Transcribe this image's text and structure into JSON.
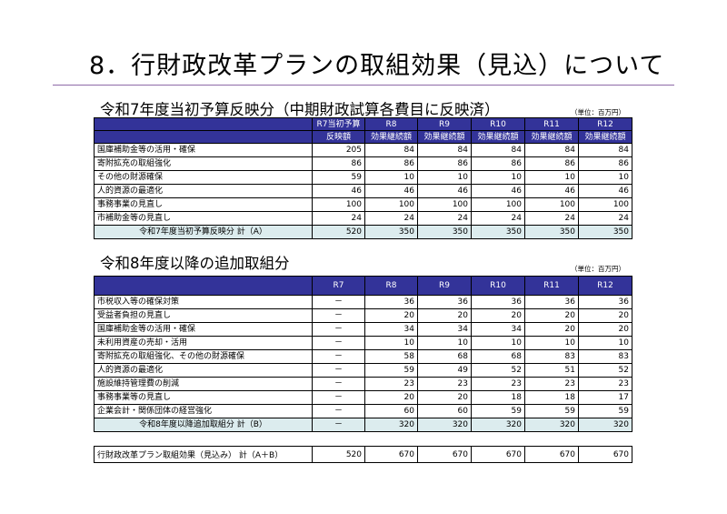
{
  "page_title": "8．行財政改革プランの取組効果（見込）について",
  "section1": {
    "heading": "令和7年度当初予算反映分（中期財政試算各費目に反映済）",
    "unit": "（単位：百万円）",
    "headers": [
      [
        "",
        "R7当初予算",
        "R8",
        "R9",
        "R10",
        "R11",
        "R12"
      ],
      [
        "",
        "反映額",
        "効果継続額",
        "効果継続額",
        "効果継続額",
        "効果継続額",
        "効果継続額"
      ]
    ],
    "rows": [
      [
        "国庫補助金等の活用・確保",
        "205",
        "84",
        "84",
        "84",
        "84",
        "84"
      ],
      [
        "寄附拡充の取組強化",
        "86",
        "86",
        "86",
        "86",
        "86",
        "86"
      ],
      [
        "その他の財源確保",
        "59",
        "10",
        "10",
        "10",
        "10",
        "10"
      ],
      [
        "人的資源の最適化",
        "46",
        "46",
        "46",
        "46",
        "46",
        "46"
      ],
      [
        "事務事業の見直し",
        "100",
        "100",
        "100",
        "100",
        "100",
        "100"
      ],
      [
        "市補助金等の見直し",
        "24",
        "24",
        "24",
        "24",
        "24",
        "24"
      ]
    ],
    "total": [
      "令和7年度当初予算反映分 計（A）",
      "520",
      "350",
      "350",
      "350",
      "350",
      "350"
    ]
  },
  "section2": {
    "heading": "令和8年度以降の追加取組分",
    "unit": "（単位：百万円）",
    "headers": [
      "",
      "R7",
      "R8",
      "R9",
      "R10",
      "R11",
      "R12"
    ],
    "rows": [
      [
        "市税収入等の確保対策",
        "－",
        "36",
        "36",
        "36",
        "36",
        "36"
      ],
      [
        "受益者負担の見直し",
        "－",
        "20",
        "20",
        "20",
        "20",
        "20"
      ],
      [
        "国庫補助金等の活用・確保",
        "－",
        "34",
        "34",
        "34",
        "20",
        "20"
      ],
      [
        "未利用資産の売却・活用",
        "－",
        "10",
        "10",
        "10",
        "10",
        "10"
      ],
      [
        "寄附拡充の取組強化、その他の財源確保",
        "－",
        "58",
        "68",
        "68",
        "83",
        "83"
      ],
      [
        "人的資源の最適化",
        "－",
        "59",
        "49",
        "52",
        "51",
        "52"
      ],
      [
        "施設維持管理費の削減",
        "－",
        "23",
        "23",
        "23",
        "23",
        "23"
      ],
      [
        "事務事業等の見直し",
        "－",
        "20",
        "20",
        "18",
        "18",
        "17"
      ],
      [
        "企業会計・関係団体の経営強化",
        "－",
        "60",
        "60",
        "59",
        "59",
        "59"
      ]
    ],
    "total": [
      "令和8年度以降追加取組分 計（B）",
      "－",
      "320",
      "320",
      "320",
      "320",
      "320"
    ]
  },
  "grand_total": [
    "行財政改革プラン取組効果（見込み） 計（A＋B）",
    "520",
    "670",
    "670",
    "670",
    "670",
    "670"
  ],
  "colors": {
    "header_bg": "#333399",
    "total_bg": "#dcecee",
    "rule": "#8e6aa8"
  }
}
